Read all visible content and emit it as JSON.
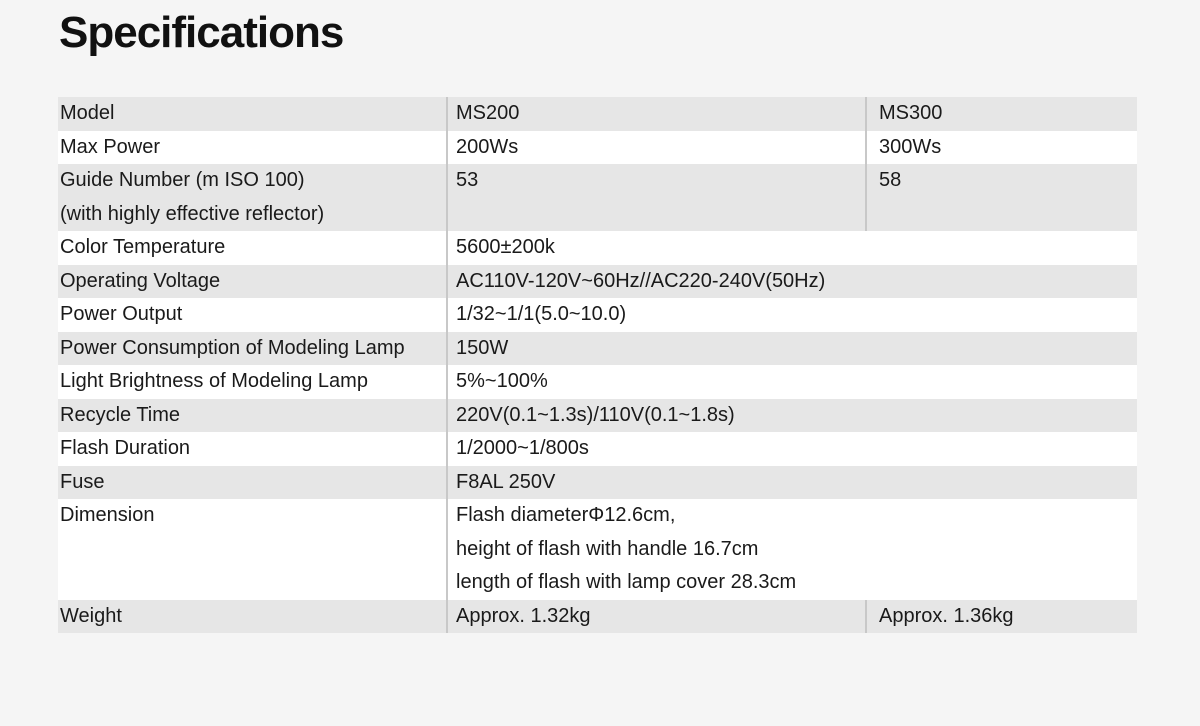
{
  "title": "Specifications",
  "rows": [
    {
      "label": [
        "Model"
      ],
      "values": [
        "MS200",
        "MS300"
      ]
    },
    {
      "label": [
        "Max Power"
      ],
      "values": [
        "200Ws",
        "300Ws"
      ]
    },
    {
      "label": [
        "Guide Number (m ISO 100)",
        "(with highly effective reflector)"
      ],
      "values": [
        "53",
        "58"
      ]
    },
    {
      "label": [
        "Color Temperature"
      ],
      "shared": [
        "5600±200k"
      ]
    },
    {
      "label": [
        "Operating Voltage"
      ],
      "shared": [
        "AC110V-120V~60Hz//AC220-240V(50Hz)"
      ]
    },
    {
      "label": [
        "Power Output"
      ],
      "shared": [
        "1/32~1/1(5.0~10.0)"
      ]
    },
    {
      "label": [
        "Power Consumption of Modeling Lamp"
      ],
      "shared": [
        "150W"
      ]
    },
    {
      "label": [
        "Light Brightness of Modeling Lamp"
      ],
      "shared": [
        "5%~100%"
      ]
    },
    {
      "label": [
        "Recycle Time"
      ],
      "shared": [
        "220V(0.1~1.3s)/110V(0.1~1.8s)"
      ]
    },
    {
      "label": [
        "Flash Duration"
      ],
      "shared": [
        "1/2000~1/800s"
      ]
    },
    {
      "label": [
        "Fuse"
      ],
      "shared": [
        "F8AL 250V"
      ]
    },
    {
      "label": [
        "Dimension"
      ],
      "shared": [
        "Flash diameterΦ12.6cm,",
        "height of flash with handle 16.7cm",
        "length of flash with lamp cover 28.3cm"
      ]
    },
    {
      "label": [
        "Weight"
      ],
      "values": [
        "Approx. 1.32kg",
        "Approx. 1.36kg"
      ]
    }
  ]
}
